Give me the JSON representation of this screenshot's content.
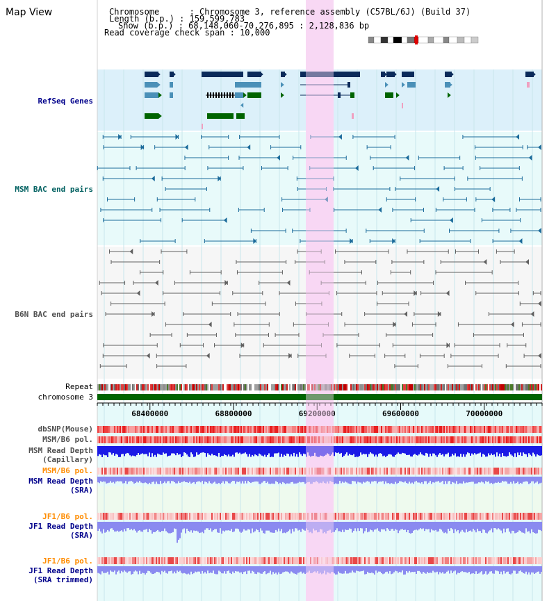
{
  "title": "Map View",
  "info": {
    "chromosome_key": "Chromosome",
    "chromosome_val": "Chromosome 3, reference assembly (C57BL/6J) (Build 37)",
    "length_key": "Length (b.p.)",
    "length_val": "159,599,783",
    "show_key": "Show (b.p.)",
    "show_val": "68,148,060-70,276,895 : 2,128,836 bp",
    "span_key": "Read coverage check span",
    "span_val": "10,000"
  },
  "tracks": {
    "refseq": "RefSeq Genes",
    "msm_bac": "MSM BAC end pairs",
    "b6n_bac": "B6N BAC end pairs",
    "repeat": "Repeat",
    "chromosome": "chromosome 3",
    "dbsnp": "dbSNP(Mouse)",
    "msm_b6_pol": "MSM/B6 pol.",
    "msm_depth_cap_1": "MSM Read Depth",
    "msm_depth_cap_2": "(Capillary)",
    "msm_b6_pol_2": "MSM/B6 pol.",
    "msm_depth_sra_1": "MSM Read Depth",
    "msm_depth_sra_2": "(SRA)",
    "jf1_b6_pol": "JF1/B6 pol.",
    "jf1_depth_sra_1": "JF1 Read Depth",
    "jf1_depth_sra_2": "(SRA)",
    "jf1_b6_pol_2": "JF1/B6 pol.",
    "jf1_depth_trim_1": "JF1 Read Depth",
    "jf1_depth_trim_2": "(SRA trimmed)"
  },
  "axis": {
    "start": 68148060,
    "end": 70276895,
    "ticks": [
      "68400000",
      "68800000",
      "69200000",
      "69600000",
      "70000000"
    ],
    "tick_values": [
      68400000,
      68800000,
      69200000,
      69600000,
      70000000
    ]
  },
  "colors": {
    "refseq_bg": "#dcf0fa",
    "bac_bg": "#e8fafa",
    "highlight": "#f8d8f4",
    "gene_dark": "#0a2a5a",
    "gene_mid": "#4a90b8",
    "gene_green": "#006400",
    "msm_bac": "#1a6a9a",
    "b6n_bac": "#606060",
    "depth_dark": "#1a1ae6",
    "depth_light": "#8a8af0",
    "label_blue": "#00008b",
    "label_orange": "#ff8c00",
    "label_teal": "#006060"
  }
}
